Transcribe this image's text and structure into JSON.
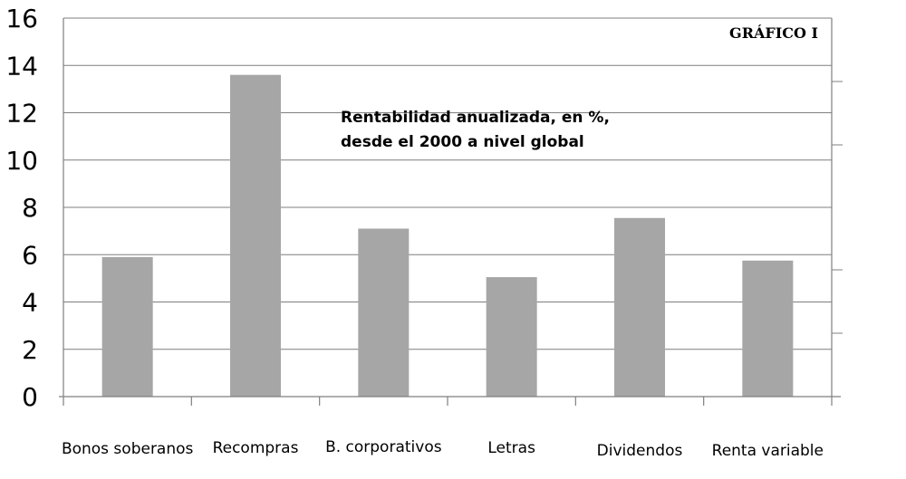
{
  "chart_data": {
    "type": "bar",
    "title": "",
    "badge": "GRÁFICO I",
    "annotation": [
      "Rentabilidad anualizada, en %,",
      "desde el 2000 a nivel global"
    ],
    "categories": [
      "Bonos soberanos",
      "Recompras",
      "B. corporativos",
      "Letras",
      "Dividendos",
      "Renta variable"
    ],
    "values": [
      5.9,
      13.6,
      7.1,
      5.05,
      7.55,
      5.75
    ],
    "ylim": [
      0,
      16
    ],
    "yticks": [
      0,
      2,
      4,
      6,
      8,
      10,
      12,
      14,
      16
    ],
    "xlabel": "",
    "ylabel": "",
    "grid": true,
    "colors": {
      "bar": "#a6a6a6",
      "grid": "#7f7f7f"
    }
  }
}
